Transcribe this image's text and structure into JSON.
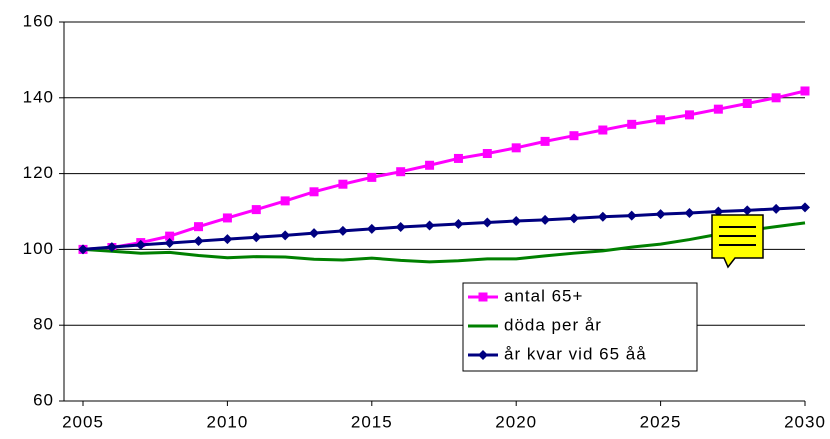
{
  "chart_data": {
    "type": "line",
    "x": [
      2005,
      2006,
      2007,
      2008,
      2009,
      2010,
      2011,
      2012,
      2013,
      2014,
      2015,
      2016,
      2017,
      2018,
      2019,
      2020,
      2021,
      2022,
      2023,
      2024,
      2025,
      2026,
      2027,
      2028,
      2029,
      2030
    ],
    "series": [
      {
        "name": "antal 65+",
        "color": "#ff00ff",
        "marker": "square",
        "values": [
          100,
          100.5,
          101.8,
          103.5,
          106,
          108.3,
          110.5,
          112.8,
          115.2,
          117.2,
          119,
          120.5,
          122.2,
          124,
          125.3,
          126.8,
          128.5,
          130,
          131.5,
          133,
          134.2,
          135.5,
          137,
          138.5,
          140,
          141.8
        ]
      },
      {
        "name": "döda per år",
        "color": "#008000",
        "marker": "none",
        "values": [
          100,
          99.5,
          99,
          99.2,
          98.4,
          97.8,
          98.1,
          98,
          97.4,
          97.2,
          97.7,
          97.1,
          96.7,
          97,
          97.5,
          97.5,
          98.3,
          99,
          99.6,
          100.6,
          101.4,
          102.6,
          104,
          105,
          106,
          107
        ]
      },
      {
        "name": "år kvar vid 65 åå",
        "color": "#000080",
        "marker": "diamond",
        "values": [
          100,
          100.6,
          101.2,
          101.7,
          102.2,
          102.7,
          103.2,
          103.7,
          104.3,
          104.9,
          105.4,
          105.9,
          106.3,
          106.7,
          107.1,
          107.5,
          107.8,
          108.2,
          108.6,
          108.9,
          109.3,
          109.6,
          110,
          110.3,
          110.7,
          111.1
        ]
      }
    ],
    "xlim": [
      2005,
      2030
    ],
    "xticks": [
      2005,
      2010,
      2015,
      2020,
      2025,
      2030
    ],
    "ylim": [
      60,
      160
    ],
    "yticks": [
      60,
      80,
      100,
      120,
      140,
      160
    ],
    "grid": true
  }
}
